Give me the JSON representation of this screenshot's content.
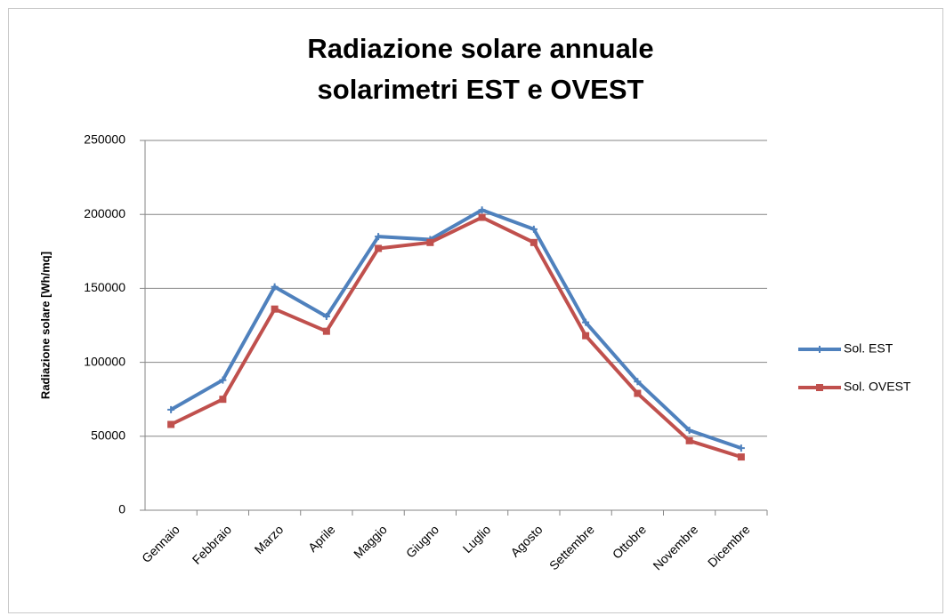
{
  "chart_data": {
    "type": "line",
    "title": [
      "Radiazione solare annuale",
      "solarimetri EST e OVEST"
    ],
    "y_label": "Radiazione solare [Wh/mq]",
    "categories": [
      "Gennaio",
      "Febbraio",
      "Marzo",
      "Aprile",
      "Maggio",
      "Giugno",
      "Luglio",
      "Agosto",
      "Settembre",
      "Ottobre",
      "Novembre",
      "Dicembre"
    ],
    "series": [
      {
        "name": "Sol. EST",
        "color": "#4f81bd",
        "values": [
          68000,
          88000,
          151000,
          131000,
          185000,
          183000,
          203000,
          190000,
          127000,
          87000,
          54000,
          42000
        ]
      },
      {
        "name": "Sol. OVEST",
        "color": "#c0504d",
        "values": [
          58000,
          75000,
          136000,
          121000,
          177000,
          181000,
          198000,
          181000,
          118000,
          79000,
          47000,
          36000
        ]
      }
    ],
    "ylim": [
      0,
      250000
    ],
    "yticks": [
      0,
      50000,
      100000,
      150000,
      200000,
      250000
    ],
    "grid": true,
    "legend": "right"
  }
}
